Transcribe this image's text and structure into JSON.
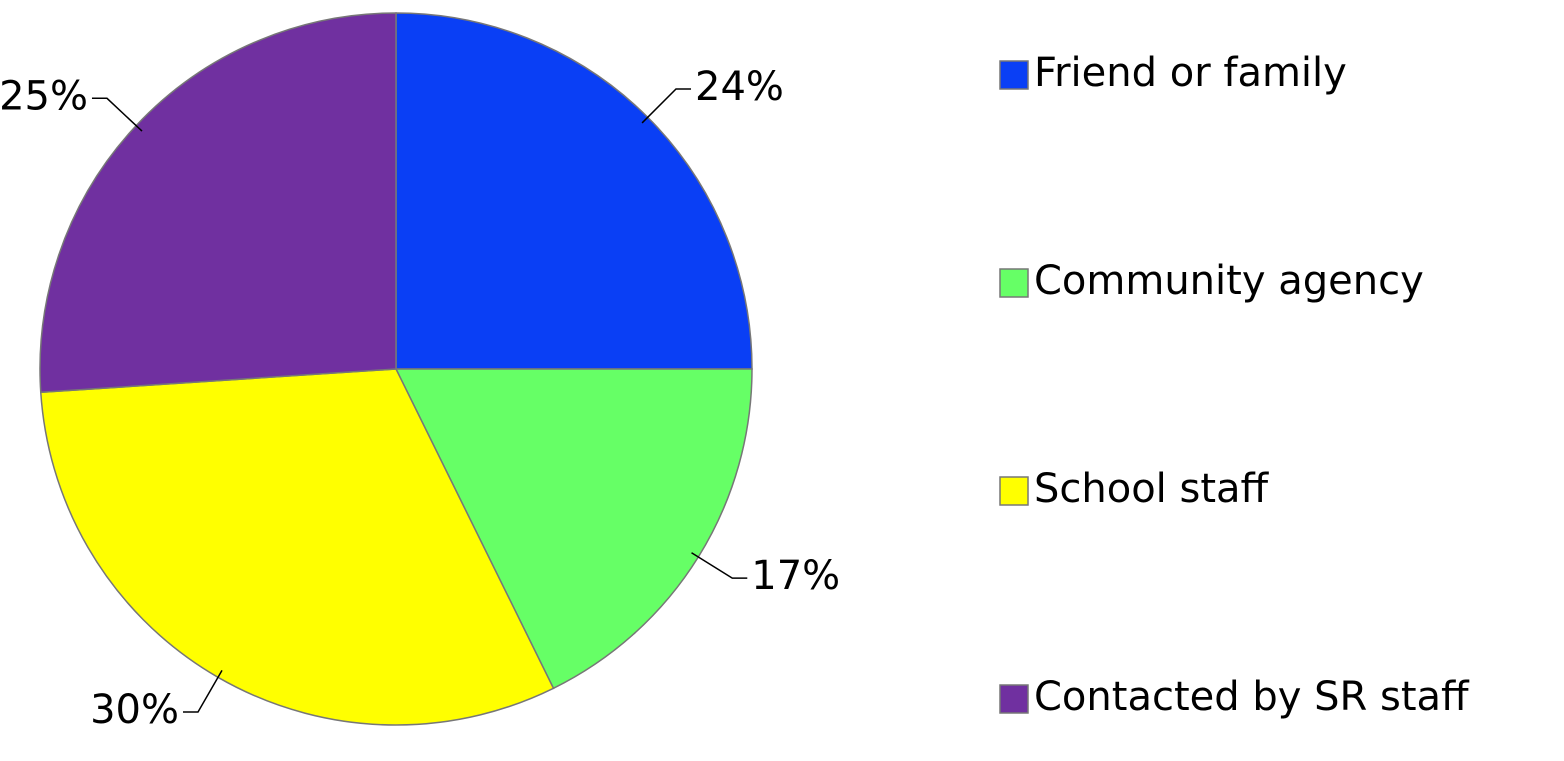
{
  "chart_data": {
    "type": "pie",
    "categories": [
      "Friend or family",
      "Community agency",
      "School staff",
      "Contacted by SR staff"
    ],
    "values": [
      24,
      17,
      30,
      25
    ],
    "value_labels": [
      "24%",
      "17%",
      "30%",
      "25%"
    ],
    "colors": [
      "#0a3ff5",
      "#66ff66",
      "#ffff00",
      "#7030a0"
    ],
    "legend": "right"
  }
}
